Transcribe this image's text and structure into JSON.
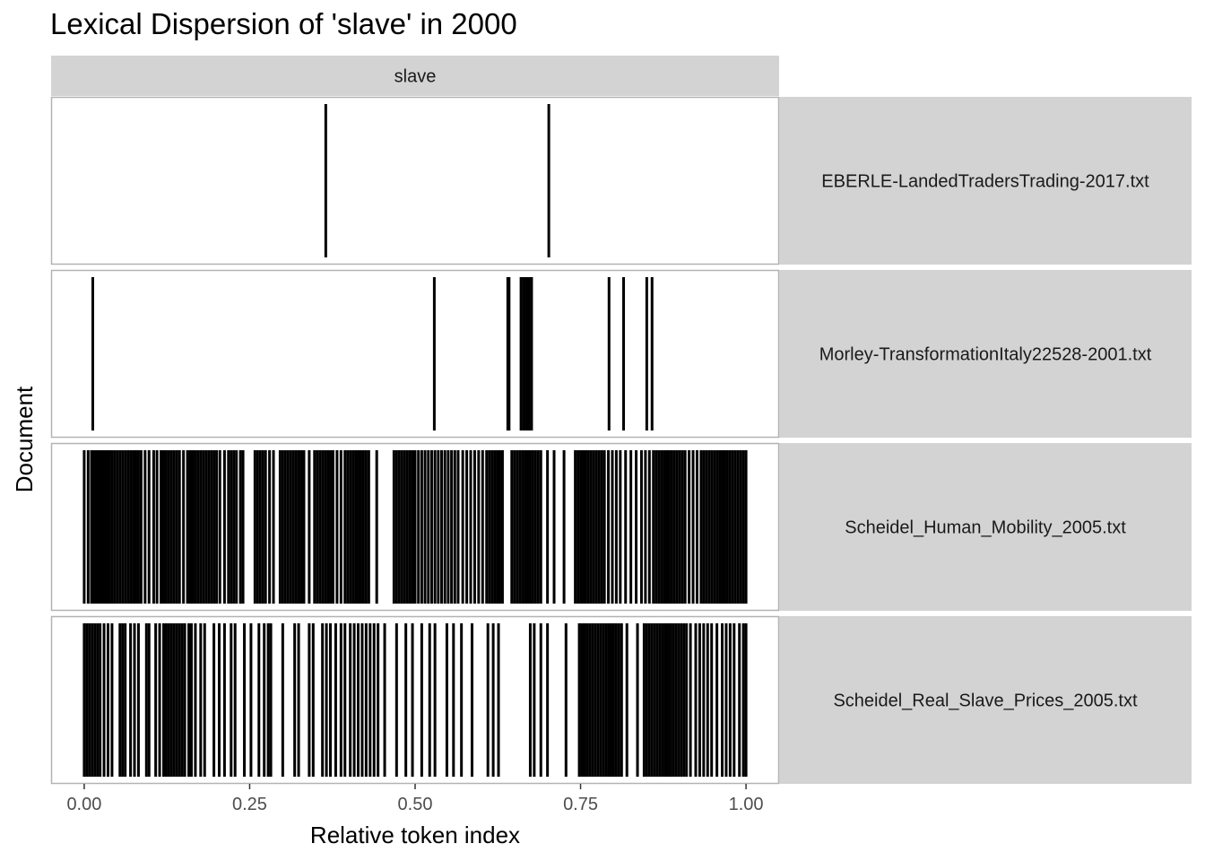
{
  "chart_data": {
    "type": "lexical-dispersion",
    "title": "Lexical Dispersion of 'slave' in 2000",
    "xlabel": "Relative token index",
    "ylabel": "Document",
    "xlim": [
      -0.05,
      1.05
    ],
    "xticks": [
      {
        "value": 0.0,
        "label": "0.00"
      },
      {
        "value": 0.25,
        "label": "0.25"
      },
      {
        "value": 0.5,
        "label": "0.50"
      },
      {
        "value": 0.75,
        "label": "0.75"
      },
      {
        "value": 1.0,
        "label": "1.00"
      }
    ],
    "grid": false,
    "column_facets": [
      "slave"
    ],
    "row_facets": [
      {
        "label": "EBERLE-LandedTradersTrading-2017.txt",
        "positions": [
          0.365,
          0.702
        ]
      },
      {
        "label": "Morley-TransformationItaly22528-2001.txt",
        "positions": [
          0.013,
          0.529,
          0.64,
          0.642,
          0.66,
          0.664,
          0.668,
          0.672,
          0.676,
          0.793,
          0.815,
          0.85,
          0.858
        ]
      },
      {
        "label": "Scheidel_Human_Mobility_2005.txt",
        "positions": [
          0.0,
          0.006,
          0.011,
          0.014,
          0.017,
          0.02,
          0.023,
          0.026,
          0.029,
          0.032,
          0.035,
          0.038,
          0.042,
          0.046,
          0.05,
          0.054,
          0.058,
          0.062,
          0.066,
          0.07,
          0.074,
          0.078,
          0.082,
          0.086,
          0.092,
          0.098,
          0.105,
          0.11,
          0.116,
          0.12,
          0.124,
          0.128,
          0.132,
          0.136,
          0.14,
          0.144,
          0.15,
          0.156,
          0.16,
          0.164,
          0.168,
          0.172,
          0.176,
          0.18,
          0.184,
          0.188,
          0.192,
          0.196,
          0.2,
          0.205,
          0.212,
          0.218,
          0.222,
          0.226,
          0.23,
          0.236,
          0.24,
          0.258,
          0.262,
          0.266,
          0.27,
          0.274,
          0.28,
          0.286,
          0.296,
          0.3,
          0.304,
          0.308,
          0.312,
          0.316,
          0.32,
          0.324,
          0.328,
          0.332,
          0.34,
          0.348,
          0.352,
          0.356,
          0.36,
          0.364,
          0.368,
          0.372,
          0.376,
          0.382,
          0.388,
          0.394,
          0.398,
          0.402,
          0.406,
          0.41,
          0.414,
          0.418,
          0.422,
          0.426,
          0.43,
          0.442,
          0.468,
          0.472,
          0.476,
          0.48,
          0.484,
          0.488,
          0.492,
          0.496,
          0.5,
          0.505,
          0.51,
          0.515,
          0.52,
          0.525,
          0.53,
          0.535,
          0.54,
          0.545,
          0.55,
          0.555,
          0.56,
          0.565,
          0.572,
          0.578,
          0.584,
          0.59,
          0.596,
          0.602,
          0.608,
          0.612,
          0.616,
          0.62,
          0.624,
          0.628,
          0.632,
          0.646,
          0.65,
          0.654,
          0.658,
          0.662,
          0.666,
          0.67,
          0.674,
          0.678,
          0.682,
          0.686,
          0.69,
          0.7,
          0.71,
          0.725,
          0.742,
          0.746,
          0.75,
          0.754,
          0.758,
          0.762,
          0.766,
          0.77,
          0.774,
          0.778,
          0.782,
          0.786,
          0.792,
          0.798,
          0.804,
          0.81,
          0.818,
          0.826,
          0.834,
          0.842,
          0.848,
          0.854,
          0.86,
          0.864,
          0.868,
          0.872,
          0.876,
          0.88,
          0.884,
          0.888,
          0.892,
          0.896,
          0.9,
          0.904,
          0.908,
          0.914,
          0.92,
          0.926,
          0.932,
          0.936,
          0.94,
          0.944,
          0.948,
          0.952,
          0.956,
          0.96,
          0.964,
          0.968,
          0.972,
          0.976,
          0.98,
          0.984,
          0.988,
          0.992,
          0.996,
          1.0
        ]
      },
      {
        "label": "Scheidel_Real_Slave_Prices_2005.txt",
        "positions": [
          0.0,
          0.004,
          0.008,
          0.012,
          0.016,
          0.02,
          0.024,
          0.03,
          0.036,
          0.042,
          0.054,
          0.058,
          0.062,
          0.07,
          0.076,
          0.082,
          0.094,
          0.098,
          0.108,
          0.114,
          0.12,
          0.124,
          0.128,
          0.132,
          0.136,
          0.14,
          0.144,
          0.148,
          0.152,
          0.158,
          0.162,
          0.168,
          0.176,
          0.182,
          0.196,
          0.204,
          0.212,
          0.222,
          0.228,
          0.242,
          0.252,
          0.264,
          0.272,
          0.278,
          0.282,
          0.3,
          0.318,
          0.324,
          0.34,
          0.346,
          0.36,
          0.366,
          0.372,
          0.38,
          0.388,
          0.394,
          0.402,
          0.408,
          0.414,
          0.42,
          0.426,
          0.432,
          0.438,
          0.444,
          0.454,
          0.472,
          0.486,
          0.496,
          0.51,
          0.522,
          0.53,
          0.548,
          0.558,
          0.57,
          0.586,
          0.61,
          0.618,
          0.626,
          0.674,
          0.68,
          0.69,
          0.7,
          0.728,
          0.748,
          0.752,
          0.756,
          0.76,
          0.764,
          0.768,
          0.772,
          0.776,
          0.78,
          0.784,
          0.788,
          0.792,
          0.796,
          0.8,
          0.804,
          0.808,
          0.812,
          0.82,
          0.836,
          0.846,
          0.85,
          0.854,
          0.858,
          0.862,
          0.866,
          0.87,
          0.874,
          0.878,
          0.882,
          0.886,
          0.89,
          0.894,
          0.898,
          0.902,
          0.906,
          0.91,
          0.916,
          0.924,
          0.93,
          0.936,
          0.942,
          0.948,
          0.956,
          0.964,
          0.97,
          0.976,
          0.982,
          0.99,
          0.996,
          1.0
        ]
      }
    ]
  }
}
